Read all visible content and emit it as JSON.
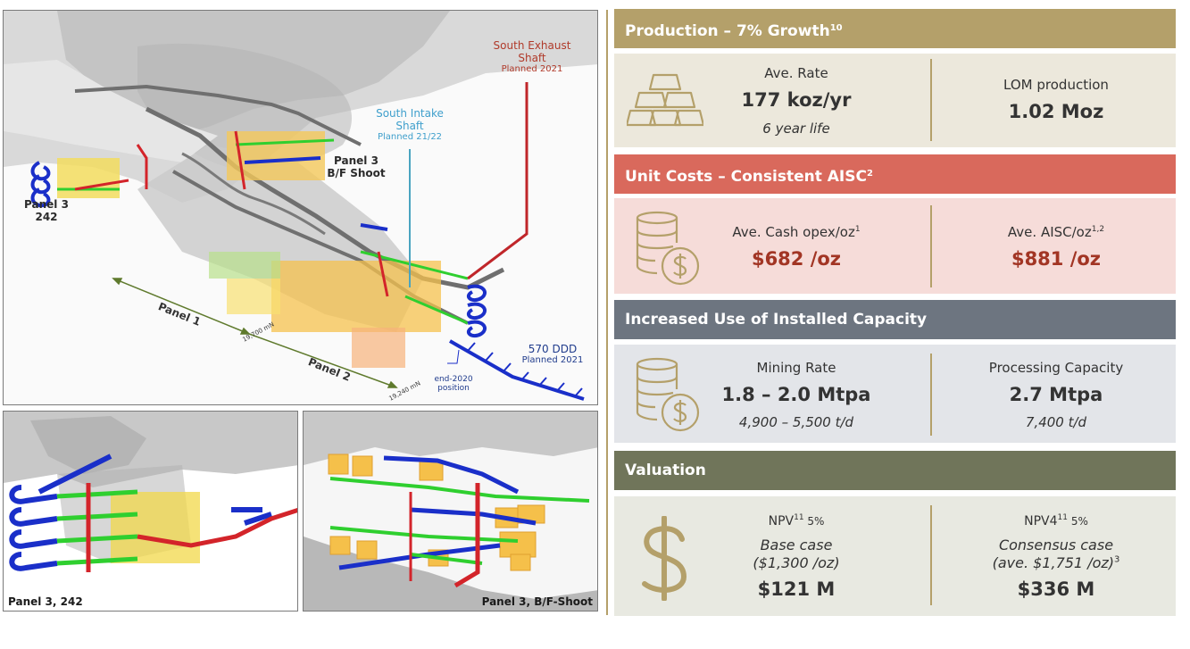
{
  "main_image": {
    "south_exhaust": [
      "South Exhaust",
      "Shaft"
    ],
    "south_exhaust_planned": "Planned 2021",
    "south_intake": [
      "South Intake",
      "Shaft"
    ],
    "south_intake_planned": "Planned 21/22",
    "panel3_bf": [
      "Panel 3",
      "B/F Shoot"
    ],
    "panel3_242": [
      "Panel 3",
      "242"
    ],
    "panel1": "Panel 1",
    "panel2": "Panel 2",
    "mn_19700": "19,700 mN",
    "mn_19240": "19,240 mN",
    "end2020": [
      "end-2020",
      "position"
    ],
    "ddd": "570 DDD",
    "ddd_planned": "Planned 2021"
  },
  "sub_images": {
    "left_caption": "Panel 3, 242",
    "right_caption": "Panel 3, B/F-Shoot"
  },
  "sections": {
    "production": {
      "title": "Production  –  7%  Growth",
      "title_sup": "10",
      "color": "#b4a06a",
      "rate_label": "Ave. Rate",
      "rate_value": "177 koz/yr",
      "rate_note": "6 year life",
      "lom_label": "LOM production",
      "lom_value": "1.02 Moz",
      "icon": "gold-bars-icon"
    },
    "unit_costs": {
      "title": "Unit Costs  – Consistent AISC",
      "title_sup": "2",
      "color": "#d9695c",
      "opex_label": "Ave. Cash opex/oz",
      "opex_sup": "1",
      "opex_value": "$682 /oz",
      "aisc_label": "Ave. AISC/oz",
      "aisc_sup": "1,2",
      "aisc_value": "$881 /oz",
      "icon": "coin-stack-dollar-icon"
    },
    "capacity": {
      "title": "Increased Use of Installed Capacity",
      "color": "#6d7580",
      "mining_label": "Mining Rate",
      "mining_value": "1.8 – 2.0 Mtpa",
      "mining_note": "4,900 – 5,500 t/d",
      "processing_label": "Processing Capacity",
      "processing_value": "2.7 Mtpa",
      "processing_note": "7,400 t/d",
      "icon": "coin-stack-dollar-icon"
    },
    "valuation": {
      "title": "Valuation",
      "color": "#70755a",
      "npv_label": "NPV",
      "npv_sup": "11",
      "npv_rate": " 5%",
      "npv_case": "Base case",
      "npv_price": "($1,300 /oz)",
      "npv_value": "$121 M",
      "npv4_label": "NPV4",
      "npv4_sup": "11",
      "npv4_rate": " 5%",
      "npv4_case": "Consensus case",
      "npv4_price": "(ave. $1,751 /oz)",
      "npv4_price_sup": "3",
      "npv4_value": "$336 M",
      "icon": "dollar-sign-icon"
    }
  }
}
